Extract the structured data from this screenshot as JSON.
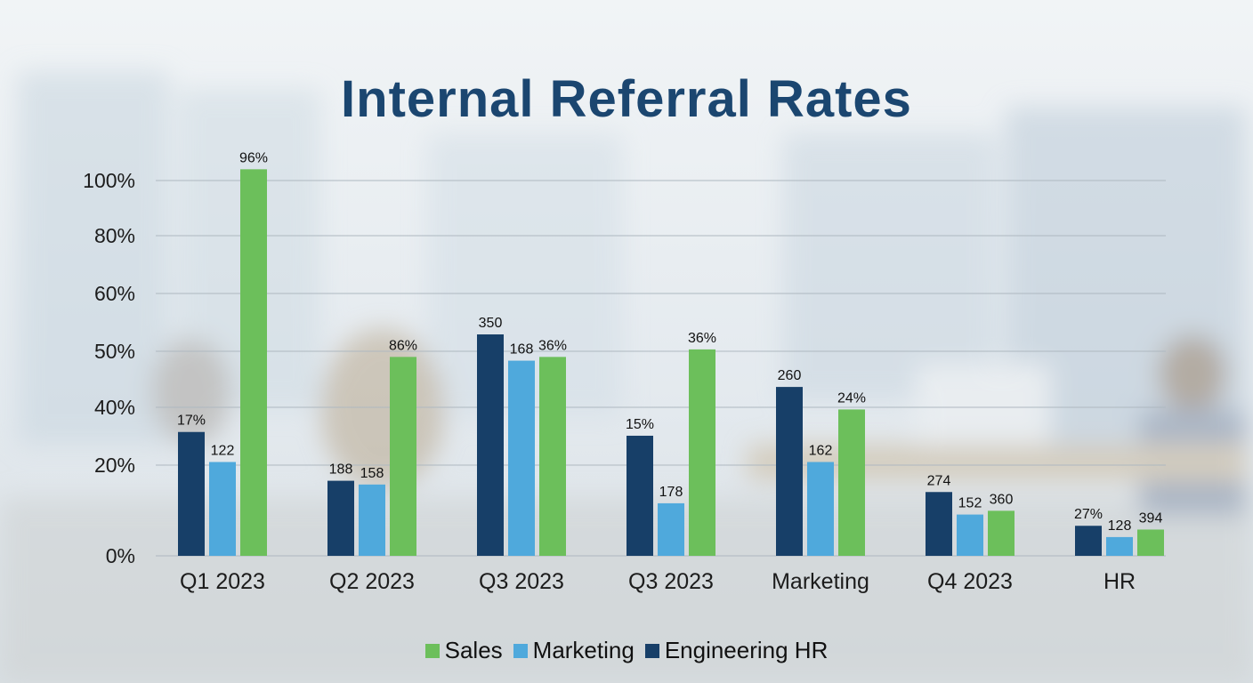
{
  "colors": {
    "sales": "#6cbf5b",
    "marketing": "#4fa9dc",
    "engineering": "#173f68",
    "title": "#1b4670"
  },
  "chart_data": {
    "type": "bar",
    "title": "Internal Referral Rates",
    "xlabel": "",
    "ylabel": "",
    "categories": [
      "Q1 2023",
      "Q2 2023",
      "Q3 2023",
      "Q3 2023",
      "Marketing",
      "Q4 2023",
      "HR"
    ],
    "y_ticks": [
      "0%",
      "20%",
      "40%",
      "50%",
      "60%",
      "80%",
      "100%"
    ],
    "grid": true,
    "legend": "bottom",
    "series": [
      {
        "name": "Engineering HR",
        "color_key": "engineering",
        "values": [
          33,
          20,
          59,
          32,
          45,
          17,
          8
        ],
        "labels": [
          "17%",
          "188",
          "350",
          "15%",
          "260",
          "274",
          "27%"
        ]
      },
      {
        "name": "Marketing",
        "color_key": "marketing",
        "values": [
          25,
          19,
          52,
          14,
          25,
          11,
          5
        ],
        "labels": [
          "122",
          "158",
          "168",
          "178",
          "162",
          "152",
          "128"
        ]
      },
      {
        "name": "Sales",
        "color_key": "sales",
        "values": [
          103,
          53,
          53,
          55,
          39,
          12,
          7
        ],
        "labels": [
          "96%",
          "86%",
          "36%",
          "36%",
          "24%",
          "360",
          "394"
        ]
      }
    ],
    "legend_order": [
      "Sales",
      "Marketing",
      "Engineering HR"
    ]
  }
}
